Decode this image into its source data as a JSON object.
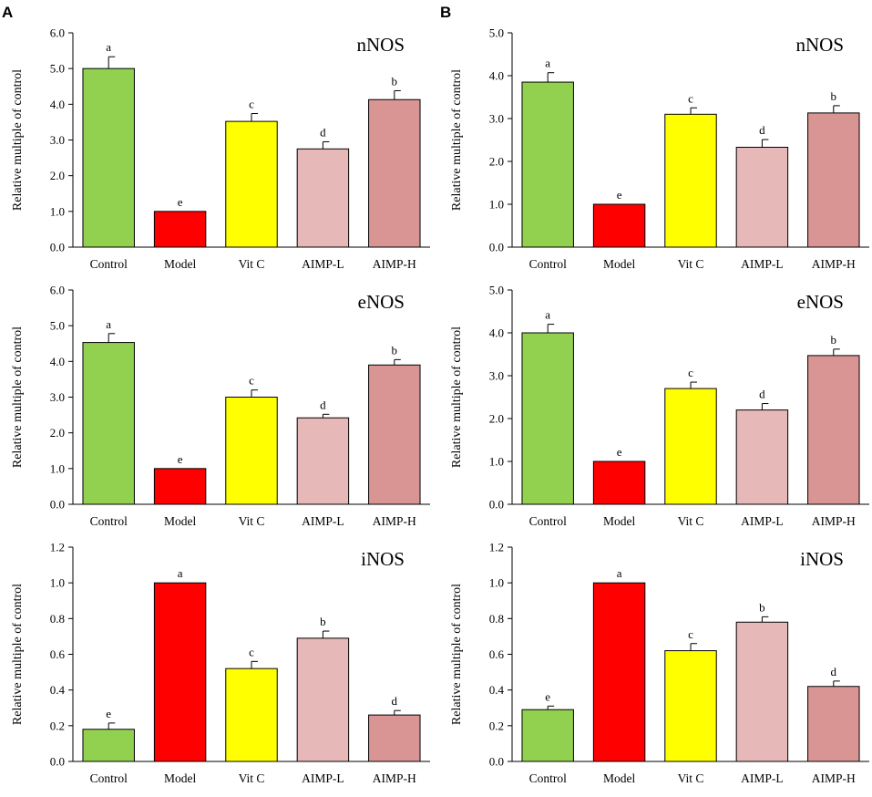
{
  "panels": [
    {
      "label": "A"
    },
    {
      "label": "B"
    }
  ],
  "bar_colors": [
    "#92d050",
    "#ff0000",
    "#ffff00",
    "#e6b8b7",
    "#d99594"
  ],
  "chart_data": [
    {
      "type": "bar",
      "panel": "A",
      "title": "nNOS",
      "xlabel": "",
      "ylabel": "Relative multiple of control",
      "categories": [
        "Control",
        "Model",
        "Vit C",
        "AIMP-L",
        "AIMP-H"
      ],
      "values": [
        5.0,
        1.0,
        3.52,
        2.75,
        4.13
      ],
      "errors": [
        0.33,
        0.0,
        0.22,
        0.2,
        0.25
      ],
      "sig_labels": [
        "a",
        "e",
        "c",
        "d",
        "b"
      ],
      "ylim": [
        0,
        6
      ],
      "yticks": [
        "0.0",
        "1.0",
        "2.0",
        "3.0",
        "4.0",
        "5.0",
        "6.0"
      ]
    },
    {
      "type": "bar",
      "panel": "B",
      "title": "nNOS",
      "xlabel": "",
      "ylabel": "Relative multiple of control",
      "categories": [
        "Control",
        "Model",
        "Vit C",
        "AIMP-L",
        "AIMP-H"
      ],
      "values": [
        3.85,
        1.0,
        3.1,
        2.33,
        3.13
      ],
      "errors": [
        0.22,
        0.0,
        0.15,
        0.18,
        0.17
      ],
      "sig_labels": [
        "a",
        "e",
        "c",
        "d",
        "b"
      ],
      "ylim": [
        0,
        5
      ],
      "yticks": [
        "0.0",
        "1.0",
        "2.0",
        "3.0",
        "4.0",
        "5.0"
      ]
    },
    {
      "type": "bar",
      "panel": "A",
      "title": "eNOS",
      "xlabel": "",
      "ylabel": "Relative multiple of control",
      "categories": [
        "Control",
        "Model",
        "Vit C",
        "AIMP-L",
        "AIMP-H"
      ],
      "values": [
        4.53,
        1.0,
        3.0,
        2.42,
        3.9
      ],
      "errors": [
        0.25,
        0.0,
        0.2,
        0.1,
        0.15
      ],
      "sig_labels": [
        "a",
        "e",
        "c",
        "d",
        "b"
      ],
      "ylim": [
        0,
        6
      ],
      "yticks": [
        "0.0",
        "1.0",
        "2.0",
        "3.0",
        "4.0",
        "5.0",
        "6.0"
      ]
    },
    {
      "type": "bar",
      "panel": "B",
      "title": "eNOS",
      "xlabel": "",
      "ylabel": "Relative multiple of control",
      "categories": [
        "Control",
        "Model",
        "Vit C",
        "AIMP-L",
        "AIMP-H"
      ],
      "values": [
        4.0,
        1.0,
        2.7,
        2.2,
        3.47
      ],
      "errors": [
        0.2,
        0.0,
        0.15,
        0.15,
        0.15
      ],
      "sig_labels": [
        "a",
        "e",
        "c",
        "d",
        "b"
      ],
      "ylim": [
        0,
        5
      ],
      "yticks": [
        "0.0",
        "1.0",
        "2.0",
        "3.0",
        "4.0",
        "5.0"
      ]
    },
    {
      "type": "bar",
      "panel": "A",
      "title": "iNOS",
      "xlabel": "",
      "ylabel": "Relative multiple of control",
      "categories": [
        "Control",
        "Model",
        "Vit C",
        "AIMP-L",
        "AIMP-H"
      ],
      "values": [
        0.18,
        1.0,
        0.52,
        0.69,
        0.26
      ],
      "errors": [
        0.035,
        0.0,
        0.04,
        0.04,
        0.025
      ],
      "sig_labels": [
        "e",
        "a",
        "c",
        "b",
        "d"
      ],
      "ylim": [
        0,
        1.2
      ],
      "yticks": [
        "0.0",
        "0.2",
        "0.4",
        "0.6",
        "0.8",
        "1.0",
        "1.2"
      ]
    },
    {
      "type": "bar",
      "panel": "B",
      "title": "iNOS",
      "xlabel": "",
      "ylabel": "Relative multiple of control",
      "categories": [
        "Control",
        "Model",
        "Vit C",
        "AIMP-L",
        "AIMP-H"
      ],
      "values": [
        0.29,
        1.0,
        0.62,
        0.78,
        0.42
      ],
      "errors": [
        0.02,
        0.0,
        0.04,
        0.03,
        0.03
      ],
      "sig_labels": [
        "e",
        "a",
        "c",
        "b",
        "d"
      ],
      "ylim": [
        0,
        1.2
      ],
      "yticks": [
        "0.0",
        "0.2",
        "0.4",
        "0.6",
        "0.8",
        "1.0",
        "1.2"
      ]
    }
  ]
}
